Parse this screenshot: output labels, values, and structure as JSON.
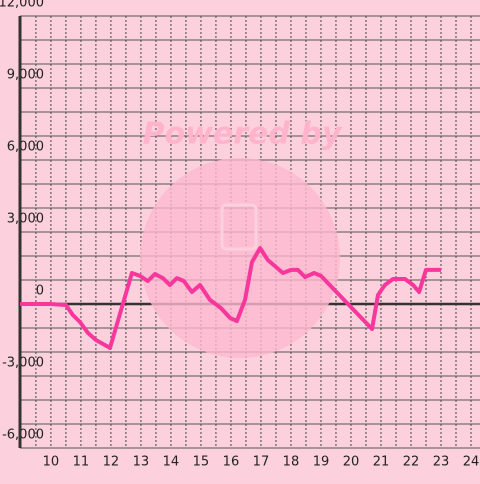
{
  "chart_data": {
    "type": "line",
    "watermark": "Powered by",
    "x": [
      8.97,
      9.97,
      10.5,
      10.73,
      10.97,
      11.23,
      11.5,
      11.97,
      12.7,
      12.97,
      13.23,
      13.47,
      13.73,
      13.97,
      14.2,
      14.43,
      14.7,
      14.97,
      15.3,
      15.67,
      15.97,
      16.2,
      16.47,
      16.7,
      16.97,
      17.23,
      17.5,
      17.73,
      18,
      18.23,
      18.47,
      18.77,
      19,
      20.7,
      20.9,
      21.13,
      21.4,
      21.8,
      22.07,
      22.27,
      22.5,
      23
    ],
    "values": [
      0,
      0,
      -40,
      -460,
      -750,
      -1200,
      -1500,
      -1830,
      1290,
      1170,
      960,
      1250,
      1080,
      790,
      1080,
      960,
      500,
      790,
      170,
      -170,
      -580,
      -710,
      170,
      1750,
      2330,
      1830,
      1540,
      1290,
      1420,
      1420,
      1120,
      1290,
      1170,
      -1040,
      375,
      790,
      1040,
      1040,
      790,
      500,
      1420,
      1420
    ],
    "color": "#f7379c",
    "xlim": [
      8.97,
      24.3
    ],
    "ylim": [
      -6000,
      12000
    ],
    "xticks": [
      10,
      11,
      12,
      13,
      14,
      15,
      16,
      17,
      18,
      19,
      20,
      21,
      22,
      23,
      24
    ],
    "yticks": [
      {
        "value": -6000,
        "label": "-6,000"
      },
      {
        "value": -3000,
        "label": "-3,000"
      },
      0,
      {
        "value": 3000,
        "label": "3,000"
      },
      {
        "value": 6000,
        "label": "6,000"
      },
      {
        "value": 9000,
        "label": "9,000"
      },
      {
        "value": 12000,
        "label": "12,000"
      }
    ],
    "y_grid": [
      -5000,
      -4000,
      -2000,
      -1000,
      1000,
      2000,
      4000,
      5000,
      7000,
      8000,
      10000,
      11000
    ],
    "x_grid": [
      9.5,
      10.5,
      11.5,
      12.5,
      13.5,
      14.5,
      15.5,
      16.5,
      17.5,
      18.5,
      19.5,
      20.5,
      21.5,
      22.5,
      23.5
    ],
    "grid": true
  }
}
